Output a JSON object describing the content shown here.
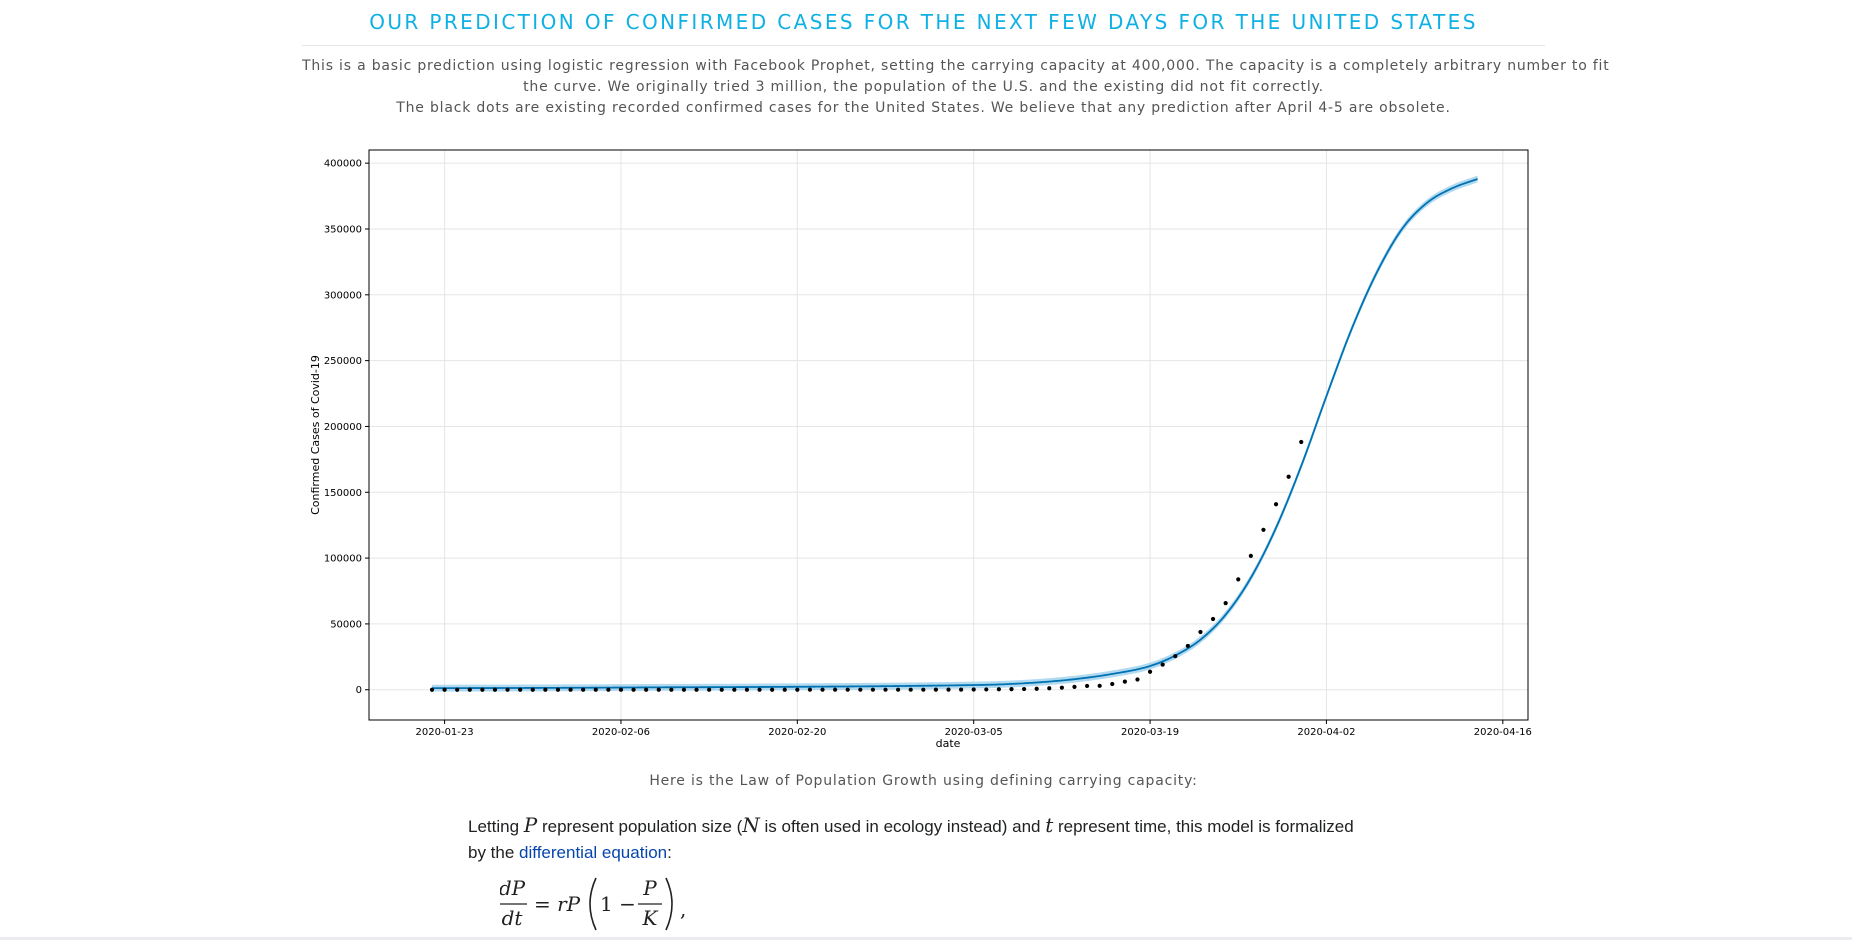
{
  "page": {
    "title": "OUR PREDICTION OF CONFIRMED CASES FOR THE NEXT FEW DAYS FOR THE UNITED STATES",
    "intro_line1": "This is a basic prediction using logistic regression with Facebook Prophet, setting the carrying capacity at 400,000. The capacity is a completely arbitrary number to fit",
    "intro_line2": "the curve. We originally tried 3 million, the population of the U.S. and the existing did not fit correctly.",
    "intro_line3": "The black dots are existing recorded confirmed cases for the United States. We believe that any prediction after April 4-5 are obsolete.",
    "law_caption": "Here is the Law of Population Growth using defining carrying capacity:",
    "body_text": {
      "part1": "Letting ",
      "var_p": "P",
      "part2": " represent population size (",
      "var_n": "N",
      "part3": " is often used in ecology instead) and ",
      "var_t": "t",
      "part4": " represent time, this model is formalized",
      "line2_part1": "by the ",
      "link_text": "differential equation",
      "line2_part2": ":"
    },
    "formula": {
      "num": "dP",
      "den": "dt",
      "eq": "= rP",
      "one_minus": "1 −",
      "frac_num": "P",
      "frac_den": "K",
      "trail": ","
    }
  },
  "colors": {
    "title": "#0fb1e5",
    "forecast_line": "#0072b2",
    "uncertainty_band": "#9dd1ee",
    "observed_dots": "#000000",
    "link": "#0645ad"
  },
  "chart_data": {
    "type": "line",
    "title": "",
    "xlabel": "date",
    "ylabel": "Confirmed Cases of Covid-19",
    "x_range": [
      "2020-01-17",
      "2020-04-18"
    ],
    "ylim": [
      -23000,
      410000
    ],
    "x_ticks": [
      "2020-01-23",
      "2020-02-06",
      "2020-02-20",
      "2020-03-05",
      "2020-03-19",
      "2020-04-02",
      "2020-04-16"
    ],
    "y_ticks": [
      0,
      50000,
      100000,
      150000,
      200000,
      250000,
      300000,
      350000,
      400000
    ],
    "grid": true,
    "series": [
      {
        "kind": "forecast",
        "band_halfwidth": 2600,
        "x": [
          "2020-01-22",
          "2020-01-28",
          "2020-02-03",
          "2020-02-09",
          "2020-02-15",
          "2020-02-21",
          "2020-02-27",
          "2020-03-04",
          "2020-03-07",
          "2020-03-10",
          "2020-03-13",
          "2020-03-16",
          "2020-03-19",
          "2020-03-21",
          "2020-03-23",
          "2020-03-25",
          "2020-03-27",
          "2020-03-29",
          "2020-03-31",
          "2020-04-02",
          "2020-04-04",
          "2020-04-06",
          "2020-04-08",
          "2020-04-10",
          "2020-04-12",
          "2020-04-14"
        ],
        "y": [
          1200,
          1300,
          1500,
          1800,
          2000,
          2300,
          2700,
          3400,
          4000,
          5500,
          8000,
          12000,
          18000,
          26000,
          38000,
          57000,
          85000,
          123000,
          170000,
          223000,
          274000,
          317000,
          350000,
          370000,
          381000,
          388000
        ]
      },
      {
        "kind": "observed",
        "x": [
          "2020-01-22",
          "2020-01-23",
          "2020-01-24",
          "2020-01-25",
          "2020-01-26",
          "2020-01-27",
          "2020-01-28",
          "2020-01-29",
          "2020-01-30",
          "2020-01-31",
          "2020-02-01",
          "2020-02-02",
          "2020-02-03",
          "2020-02-04",
          "2020-02-05",
          "2020-02-06",
          "2020-02-07",
          "2020-02-08",
          "2020-02-09",
          "2020-02-10",
          "2020-02-11",
          "2020-02-12",
          "2020-02-13",
          "2020-02-14",
          "2020-02-15",
          "2020-02-16",
          "2020-02-17",
          "2020-02-18",
          "2020-02-19",
          "2020-02-20",
          "2020-02-21",
          "2020-02-22",
          "2020-02-23",
          "2020-02-24",
          "2020-02-25",
          "2020-02-26",
          "2020-02-27",
          "2020-02-28",
          "2020-02-29",
          "2020-03-01",
          "2020-03-02",
          "2020-03-03",
          "2020-03-04",
          "2020-03-05",
          "2020-03-06",
          "2020-03-07",
          "2020-03-08",
          "2020-03-09",
          "2020-03-10",
          "2020-03-11",
          "2020-03-12",
          "2020-03-13",
          "2020-03-14",
          "2020-03-15",
          "2020-03-16",
          "2020-03-17",
          "2020-03-18",
          "2020-03-19",
          "2020-03-20",
          "2020-03-21",
          "2020-03-22",
          "2020-03-23",
          "2020-03-24",
          "2020-03-25",
          "2020-03-26",
          "2020-03-27",
          "2020-03-28",
          "2020-03-29",
          "2020-03-30",
          "2020-03-31"
        ],
        "y": [
          1,
          1,
          2,
          2,
          5,
          5,
          5,
          5,
          5,
          6,
          8,
          8,
          11,
          11,
          11,
          12,
          12,
          12,
          12,
          12,
          13,
          13,
          14,
          14,
          14,
          14,
          14,
          14,
          14,
          14,
          16,
          16,
          16,
          16,
          16,
          16,
          17,
          18,
          24,
          30,
          53,
          73,
          104,
          174,
          222,
          337,
          451,
          519,
          711,
          1109,
          1561,
          2157,
          2870,
          2968,
          4360,
          6141,
          7786,
          13680,
          19101,
          25493,
          33276,
          43847,
          53740,
          65778,
          83836,
          101657,
          121478,
          140886,
          161807,
          188172
        ]
      }
    ]
  }
}
